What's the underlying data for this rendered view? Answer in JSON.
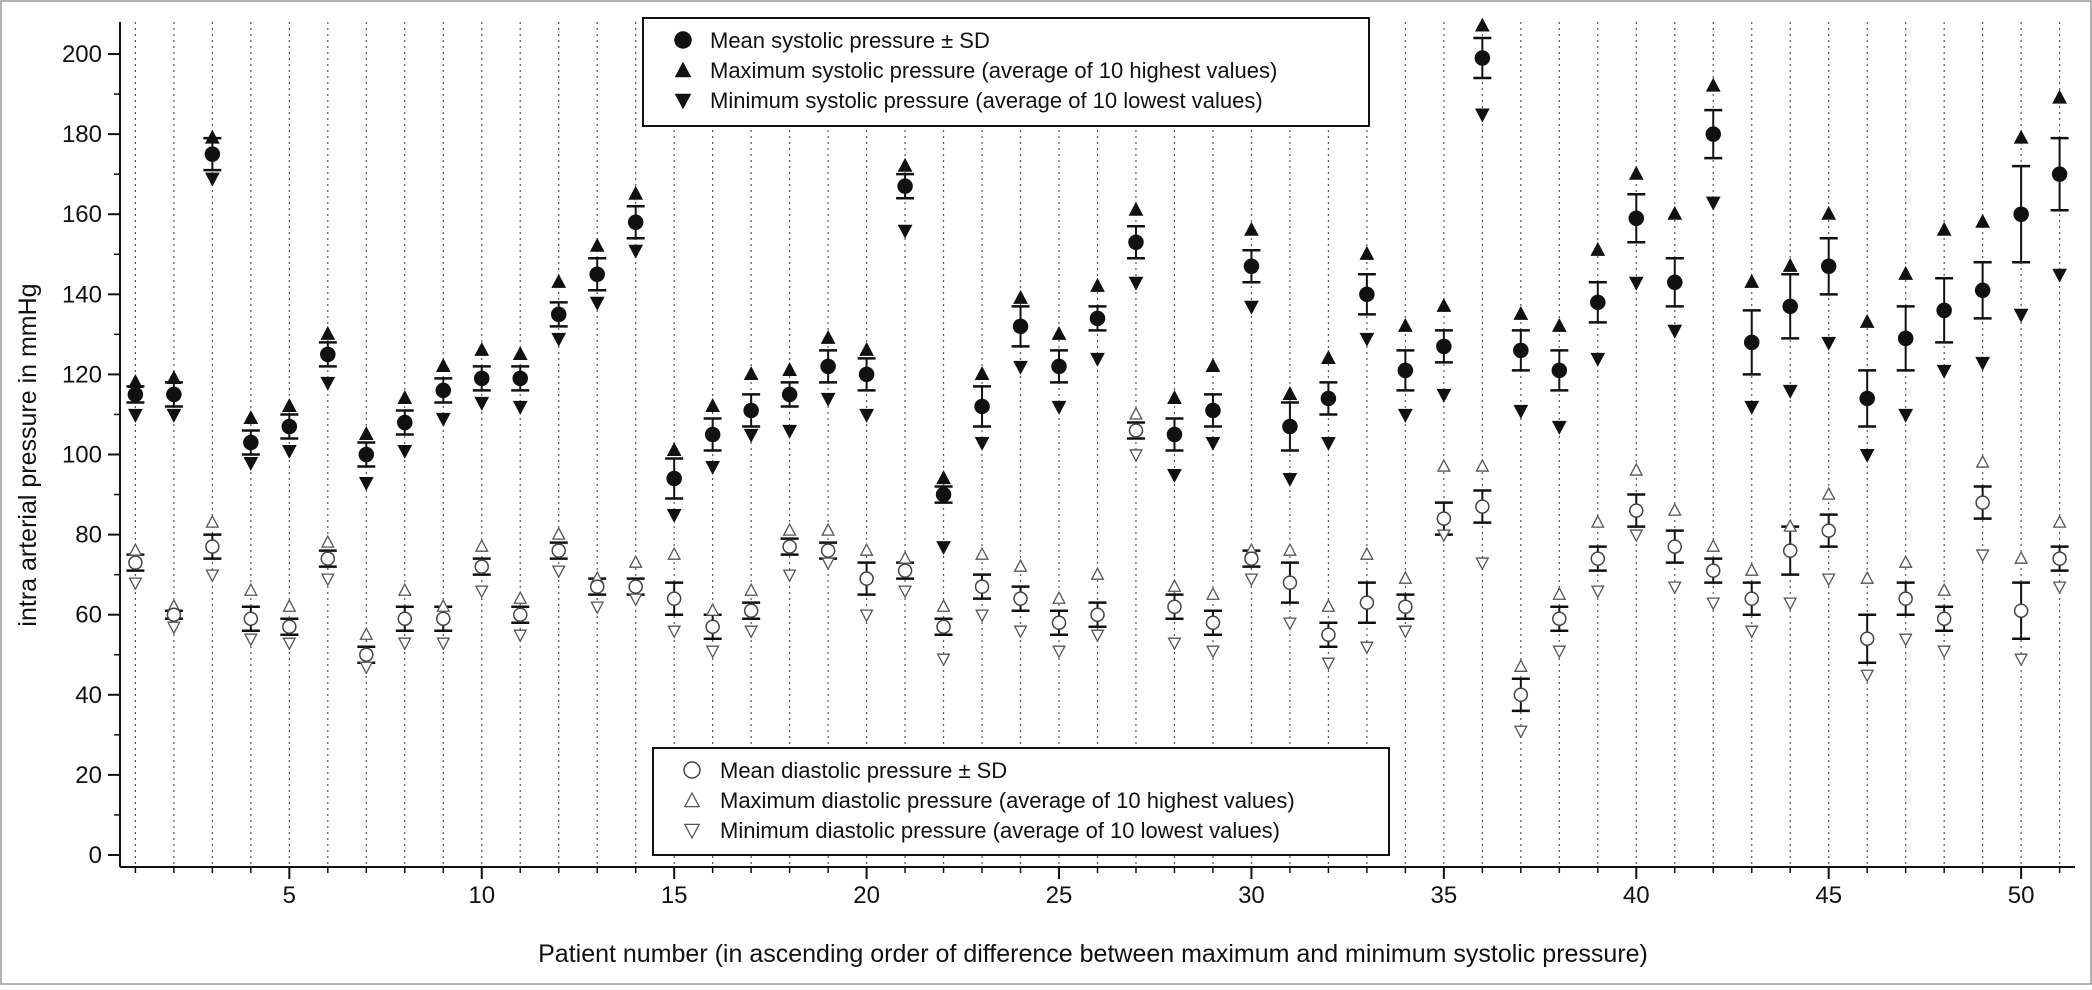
{
  "chart_data": {
    "type": "scatter",
    "title": "",
    "xlabel": "Patient number (in ascending order of difference between maximum and minimum systolic pressure)",
    "ylabel": "intra arterial pressure in mmHg",
    "xlim": [
      0.6,
      51.4
    ],
    "ylim": [
      -3,
      206
    ],
    "x_ticks": [
      5,
      10,
      15,
      20,
      25,
      30,
      35,
      40,
      45,
      50
    ],
    "y_ticks": [
      0,
      20,
      40,
      60,
      80,
      100,
      120,
      140,
      160,
      180,
      200
    ],
    "grid": "vertical dotted line at each patient",
    "legend_top": {
      "placement": "top-center",
      "entries": [
        {
          "label": "Mean systolic pressure ± SD",
          "marker": "filled-circle"
        },
        {
          "label": "Maximum systolic pressure (average of 10 highest values)",
          "marker": "filled-triangle-up"
        },
        {
          "label": "Minimum systolic pressure (average of 10 lowest values)",
          "marker": "filled-triangle-down"
        }
      ]
    },
    "legend_bottom": {
      "placement": "bottom-center",
      "entries": [
        {
          "label": "Mean diastolic pressure ± SD",
          "marker": "open-circle"
        },
        {
          "label": "Maximum diastolic pressure (average of 10 highest values)",
          "marker": "open-triangle-up"
        },
        {
          "label": "Minimum diastolic pressure (average of 10 lowest values)",
          "marker": "open-triangle-down"
        }
      ]
    },
    "x": [
      1,
      2,
      3,
      4,
      5,
      6,
      7,
      8,
      9,
      10,
      11,
      12,
      13,
      14,
      15,
      16,
      17,
      18,
      19,
      20,
      21,
      22,
      23,
      24,
      25,
      26,
      27,
      28,
      29,
      30,
      31,
      32,
      33,
      34,
      35,
      36,
      37,
      38,
      39,
      40,
      41,
      42,
      43,
      44,
      45,
      46,
      47,
      48,
      49,
      50,
      51
    ],
    "series": [
      {
        "name": "Mean systolic pressure ± SD",
        "mean": [
          115,
          115,
          175,
          103,
          107,
          125,
          100,
          108,
          116,
          119,
          119,
          135,
          145,
          158,
          94,
          105,
          111,
          115,
          122,
          120,
          167,
          90,
          112,
          132,
          122,
          134,
          153,
          105,
          111,
          147,
          107,
          114,
          140,
          121,
          127,
          199,
          126,
          121,
          138,
          159,
          143,
          180,
          128,
          137,
          147,
          114,
          129,
          136,
          141,
          160,
          170
        ],
        "sd": [
          2,
          3,
          4,
          3,
          3,
          3,
          3,
          3,
          3,
          3,
          3,
          3,
          4,
          4,
          5,
          4,
          4,
          3,
          4,
          4,
          3,
          2,
          5,
          5,
          4,
          3,
          4,
          4,
          4,
          4,
          6,
          4,
          5,
          5,
          4,
          5,
          5,
          5,
          5,
          6,
          6,
          6,
          8,
          8,
          7,
          7,
          8,
          8,
          7,
          12,
          9
        ]
      },
      {
        "name": "Maximum systolic pressure (average of 10 highest values)",
        "values": [
          118,
          119,
          179,
          109,
          112,
          130,
          105,
          114,
          122,
          126,
          125,
          143,
          152,
          165,
          101,
          112,
          120,
          121,
          129,
          126,
          172,
          94,
          120,
          139,
          130,
          142,
          161,
          114,
          122,
          156,
          115,
          124,
          150,
          132,
          137,
          207,
          135,
          132,
          151,
          170,
          160,
          192,
          143,
          147,
          160,
          133,
          145,
          156,
          158,
          179,
          189
        ]
      },
      {
        "name": "Minimum systolic pressure (average of 10 lowest values)",
        "values": [
          110,
          110,
          169,
          98,
          101,
          118,
          93,
          101,
          109,
          113,
          112,
          129,
          138,
          151,
          85,
          97,
          105,
          106,
          114,
          110,
          156,
          77,
          103,
          122,
          112,
          124,
          143,
          95,
          103,
          137,
          94,
          103,
          129,
          110,
          115,
          185,
          111,
          107,
          124,
          143,
          131,
          163,
          112,
          116,
          128,
          100,
          110,
          121,
          123,
          135,
          145
        ]
      },
      {
        "name": "Mean diastolic pressure ± SD",
        "mean": [
          73,
          60,
          77,
          59,
          57,
          74,
          50,
          59,
          59,
          72,
          60,
          76,
          67,
          67,
          64,
          57,
          61,
          77,
          76,
          69,
          71,
          57,
          67,
          64,
          58,
          60,
          106,
          62,
          58,
          74,
          68,
          55,
          63,
          62,
          84,
          87,
          40,
          59,
          74,
          86,
          77,
          71,
          64,
          76,
          81,
          54,
          64,
          59,
          88,
          61,
          74
        ],
        "sd": [
          2,
          1,
          3,
          3,
          2,
          2,
          2,
          3,
          3,
          2,
          2,
          2,
          2,
          2,
          4,
          3,
          2,
          2,
          2,
          4,
          2,
          2,
          3,
          3,
          3,
          3,
          2,
          3,
          3,
          2,
          5,
          3,
          5,
          3,
          4,
          4,
          4,
          3,
          3,
          4,
          4,
          3,
          4,
          6,
          4,
          6,
          4,
          3,
          4,
          7,
          3
        ]
      },
      {
        "name": "Maximum diastolic pressure (average of 10 highest values)",
        "values": [
          76,
          62,
          83,
          66,
          62,
          78,
          55,
          66,
          62,
          77,
          64,
          80,
          69,
          73,
          75,
          61,
          66,
          81,
          81,
          76,
          74,
          62,
          75,
          72,
          64,
          70,
          110,
          67,
          65,
          76,
          76,
          62,
          75,
          69,
          97,
          97,
          47,
          65,
          83,
          96,
          86,
          77,
          71,
          82,
          90,
          69,
          73,
          66,
          98,
          74,
          83
        ]
      },
      {
        "name": "Minimum diastolic pressure (average of 10 lowest values)",
        "values": [
          68,
          57,
          70,
          54,
          53,
          69,
          47,
          53,
          53,
          66,
          55,
          71,
          62,
          64,
          56,
          51,
          56,
          70,
          73,
          60,
          66,
          49,
          60,
          56,
          51,
          55,
          100,
          53,
          51,
          69,
          58,
          48,
          52,
          56,
          80,
          73,
          31,
          51,
          66,
          80,
          67,
          63,
          56,
          63,
          69,
          45,
          54,
          51,
          75,
          49,
          67
        ]
      }
    ]
  }
}
